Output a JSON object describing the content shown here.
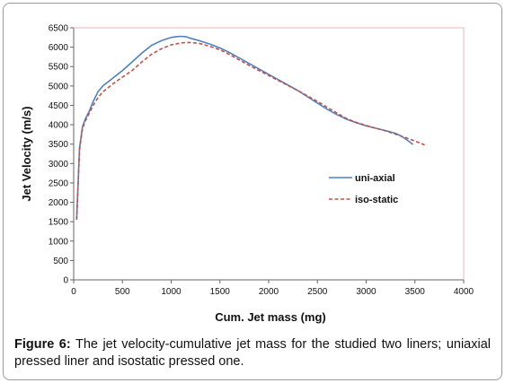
{
  "chart_data": {
    "type": "line",
    "xlabel": "Cum. Jet mass (mg)",
    "ylabel": "Jet Velocity (m/s)",
    "xlim": [
      0,
      4000
    ],
    "ylim": [
      0,
      6500
    ],
    "xticks": [
      0,
      500,
      1000,
      1500,
      2000,
      2500,
      3000,
      3500,
      4000
    ],
    "yticks": [
      0,
      500,
      1000,
      1500,
      2000,
      2500,
      3000,
      3500,
      4000,
      4500,
      5000,
      5500,
      6000,
      6500
    ],
    "grid": false,
    "legend_position": "right-center",
    "series": [
      {
        "name": "uni-axial",
        "style": "solid",
        "color": "#4f81bd",
        "x": [
          30,
          60,
          90,
          120,
          160,
          200,
          250,
          300,
          350,
          400,
          500,
          600,
          700,
          800,
          900,
          1000,
          1050,
          1100,
          1150,
          1200,
          1300,
          1400,
          1500,
          1600,
          1700,
          1800,
          1900,
          2000,
          2100,
          2200,
          2300,
          2400,
          2500,
          2600,
          2700,
          2800,
          2900,
          3000,
          3100,
          3200,
          3300,
          3350,
          3400,
          3450,
          3480
        ],
        "y": [
          1550,
          3400,
          3950,
          4150,
          4350,
          4600,
          4850,
          5000,
          5100,
          5200,
          5400,
          5620,
          5850,
          6050,
          6170,
          6250,
          6270,
          6280,
          6270,
          6230,
          6160,
          6080,
          5980,
          5860,
          5720,
          5580,
          5440,
          5300,
          5160,
          5020,
          4880,
          4720,
          4560,
          4400,
          4260,
          4140,
          4050,
          3970,
          3910,
          3850,
          3780,
          3720,
          3640,
          3550,
          3490
        ]
      },
      {
        "name": "iso-static",
        "style": "dashed",
        "color": "#c0504d",
        "x": [
          30,
          60,
          90,
          120,
          160,
          200,
          250,
          300,
          350,
          400,
          500,
          600,
          700,
          800,
          900,
          1000,
          1100,
          1150,
          1200,
          1250,
          1300,
          1400,
          1500,
          1600,
          1700,
          1800,
          1900,
          2000,
          2100,
          2200,
          2300,
          2400,
          2500,
          2600,
          2700,
          2800,
          2900,
          3000,
          3100,
          3200,
          3300,
          3400,
          3500,
          3600
        ],
        "y": [
          1550,
          3350,
          3900,
          4100,
          4300,
          4500,
          4700,
          4850,
          4950,
          5050,
          5230,
          5400,
          5620,
          5820,
          5960,
          6060,
          6110,
          6120,
          6120,
          6110,
          6090,
          6020,
          5930,
          5810,
          5670,
          5530,
          5400,
          5270,
          5140,
          5010,
          4880,
          4740,
          4600,
          4450,
          4300,
          4160,
          4060,
          3980,
          3910,
          3840,
          3760,
          3670,
          3580,
          3480
        ]
      }
    ]
  },
  "caption": {
    "label": "Figure 6:",
    "text": "The jet velocity-cumulative jet mass for the studied two liners; uniaxial pressed liner and isostatic pressed one."
  },
  "colors": {
    "plot_border": "#e8b8b8",
    "axis": "#666666"
  }
}
